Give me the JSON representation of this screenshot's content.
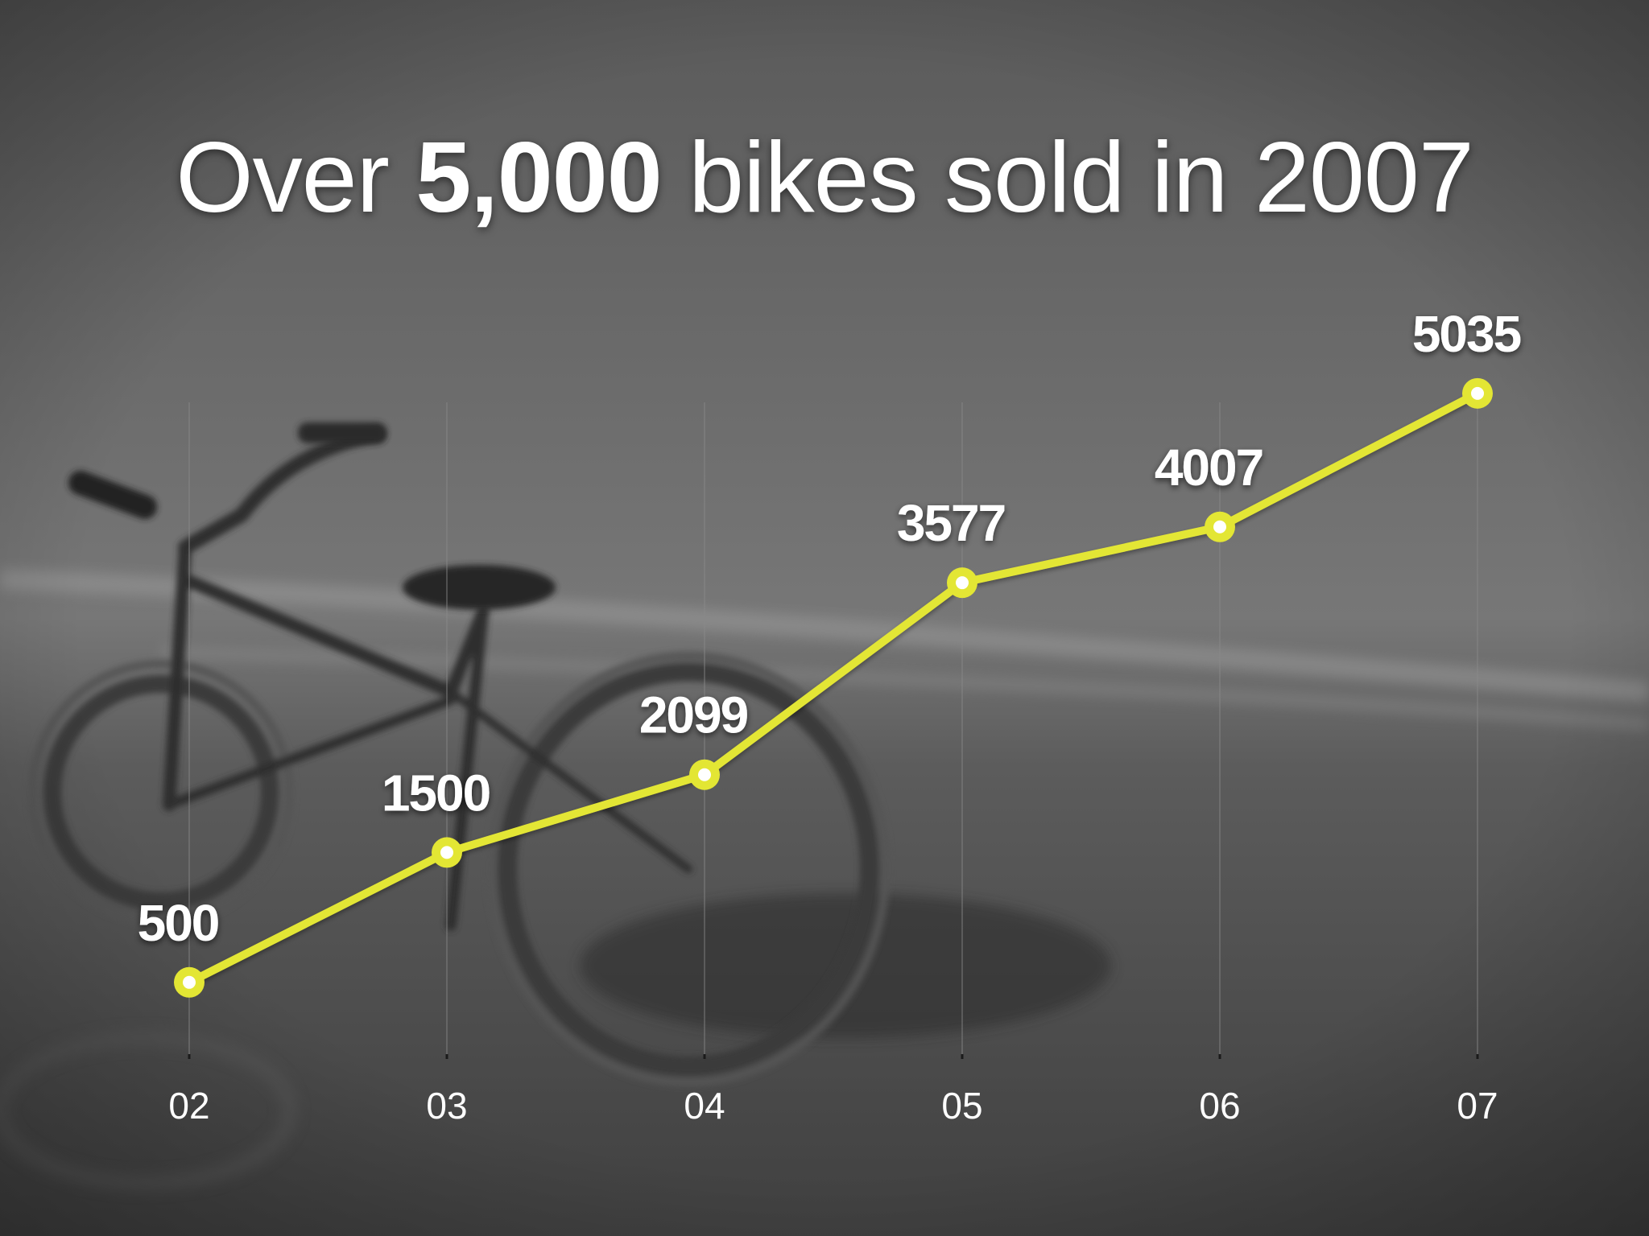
{
  "slide": {
    "headline_prefix": "Over",
    "headline_bold": "5,000",
    "headline_suffix": "bikes sold in 2007"
  },
  "colors": {
    "line": "#e3e634",
    "marker_center": "#ffffff",
    "grid": "#8a8a8a",
    "text": "#ffffff"
  },
  "chart_data": {
    "type": "line",
    "title": "Over 5,000 bikes sold in 2007",
    "xlabel": "",
    "ylabel": "",
    "categories": [
      "02",
      "03",
      "04",
      "05",
      "06",
      "07"
    ],
    "series": [
      {
        "name": "Bikes sold",
        "values": [
          500,
          1500,
          2099,
          3577,
          4007,
          5035
        ]
      }
    ],
    "data_labels": [
      "500",
      "1500",
      "2099",
      "3577",
      "4007",
      "5035"
    ],
    "ylim": [
      0,
      5300
    ],
    "grid": "vertical",
    "legend": "none"
  }
}
